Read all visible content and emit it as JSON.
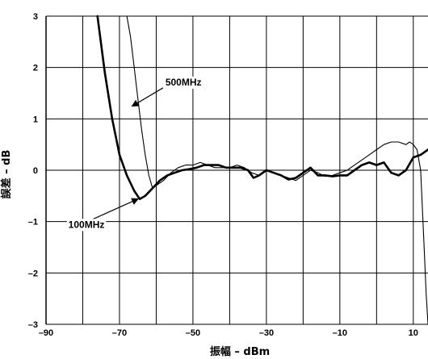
{
  "chart_data": {
    "type": "line",
    "title": "",
    "xlabel": "振幅 – dBm",
    "ylabel": "誤差 – dB",
    "xlim": [
      -90,
      14
    ],
    "ylim": [
      -3,
      3
    ],
    "x_ticks": [
      -90,
      -70,
      -50,
      -30,
      -10,
      10
    ],
    "x_tick_labels": [
      "–90",
      "–70",
      "–50",
      "–30",
      "–10",
      "10"
    ],
    "y_ticks": [
      3,
      2,
      1,
      0,
      -1,
      -2,
      -3
    ],
    "y_tick_labels": [
      "3",
      "2",
      "1",
      "0",
      "–1",
      "–2",
      "–3"
    ],
    "x_gridlines": [
      -90,
      -80,
      -70,
      -60,
      -50,
      -40,
      -30,
      -20,
      -10,
      0,
      10
    ],
    "grid": true,
    "legend": "none",
    "colors": {
      "series": "#000000",
      "grid": "#000000",
      "background": "#ffffff"
    },
    "series": [
      {
        "name": "100MHz",
        "stroke": "thick",
        "x": [
          -76,
          -74,
          -72,
          -70,
          -68,
          -66,
          -64.5,
          -63,
          -61,
          -59,
          -57,
          -55,
          -53,
          -51,
          -49,
          -47,
          -45,
          -43,
          -41,
          -39,
          -37,
          -35,
          -33.5,
          -32,
          -30,
          -28,
          -26,
          -24,
          -22,
          -20,
          -18,
          -16,
          -14,
          -12,
          -10,
          -8,
          -6,
          -4,
          -2,
          0,
          2,
          4,
          6,
          8,
          10,
          12,
          14
        ],
        "y": [
          3.0,
          1.9,
          1.0,
          0.3,
          -0.1,
          -0.4,
          -0.56,
          -0.5,
          -0.35,
          -0.2,
          -0.1,
          -0.05,
          0.0,
          0.02,
          0.05,
          0.1,
          0.1,
          0.1,
          0.05,
          0.05,
          0.05,
          0.0,
          -0.15,
          -0.1,
          0.0,
          -0.05,
          -0.1,
          -0.18,
          -0.15,
          -0.05,
          0.05,
          -0.1,
          -0.1,
          -0.12,
          -0.1,
          -0.1,
          0.0,
          0.1,
          0.15,
          0.1,
          0.15,
          -0.05,
          -0.1,
          0.0,
          0.25,
          0.3,
          0.4
        ]
      },
      {
        "name": "500MHz",
        "stroke": "thin",
        "x": [
          -68,
          -67,
          -66,
          -65,
          -64,
          -63,
          -62,
          -61,
          -60,
          -58,
          -56,
          -54,
          -52,
          -50,
          -48,
          -46,
          -44,
          -42,
          -40,
          -38,
          -36,
          -34,
          -32,
          -30,
          -28,
          -26,
          -24,
          -22,
          -20,
          -18,
          -16,
          -14,
          -12,
          -10,
          -8,
          -6,
          -4,
          -2,
          0,
          2,
          4,
          6,
          8,
          9,
          10,
          11,
          12,
          12.5,
          13,
          13.5,
          14
        ],
        "y": [
          3.0,
          2.6,
          2.0,
          1.4,
          0.8,
          0.3,
          -0.1,
          -0.35,
          -0.3,
          -0.2,
          -0.05,
          0.05,
          0.1,
          0.1,
          0.15,
          0.1,
          0.05,
          0.05,
          0.05,
          0.1,
          0.05,
          -0.05,
          -0.1,
          0.0,
          -0.05,
          -0.1,
          -0.15,
          -0.2,
          -0.1,
          0.0,
          -0.05,
          -0.12,
          -0.1,
          -0.05,
          0.0,
          0.1,
          0.2,
          0.3,
          0.4,
          0.5,
          0.55,
          0.55,
          0.5,
          0.55,
          0.5,
          0.4,
          0.0,
          -0.8,
          -1.6,
          -2.4,
          -3.0
        ]
      }
    ],
    "annotations": [
      {
        "text": "500MHz",
        "x": -57.5,
        "y": 1.65,
        "arrow_to": [
          -66.5,
          1.25
        ],
        "anchor": "start"
      },
      {
        "text": "100MHz",
        "x": -79,
        "y": -1.12,
        "arrow_to": [
          -65,
          -0.56
        ],
        "anchor": "middle"
      }
    ]
  }
}
